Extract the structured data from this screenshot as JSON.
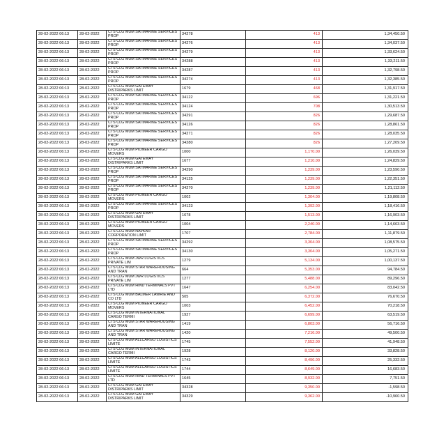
{
  "statement": {
    "amount_color": "#e02020",
    "rows": [
      {
        "txn_date": "28-02-2022 06:13",
        "value_date": "28-02-2022",
        "description": "CTS CLG MUM SAI MARINE SERVICES PROP",
        "ref": "34278",
        "debit": "413",
        "balance": "1,34,450.50"
      },
      {
        "txn_date": "28-02-2022 06:13",
        "value_date": "28-02-2022",
        "description": "CTS CLG MUM SAI MARINE SERVICES PROP",
        "ref": "34276",
        "debit": "413",
        "balance": "1,34,037.50"
      },
      {
        "txn_date": "28-02-2022 06:13",
        "value_date": "28-02-2022",
        "description": "CTS CLG MUM SAI MARINE SERVICES PROP",
        "ref": "34279",
        "debit": "413",
        "balance": "1,33,624.50"
      },
      {
        "txn_date": "28-02-2022 06:13",
        "value_date": "28-02-2022",
        "description": "CTS CLG MUM SAI MARINE SERVICES PROP",
        "ref": "34288",
        "debit": "413",
        "balance": "1,33,211.50"
      },
      {
        "txn_date": "28-02-2022 06:13",
        "value_date": "28-02-2022",
        "description": "CTS CLG MUM SAI MARINE SERVICES PROP",
        "ref": "34287",
        "debit": "413",
        "balance": "1,32,798.50"
      },
      {
        "txn_date": "28-02-2022 06:13",
        "value_date": "28-02-2022",
        "description": "CTS CLG MUM SAI MARINE SERVICES PROP",
        "ref": "34274",
        "debit": "413",
        "balance": "1,32,385.50"
      },
      {
        "txn_date": "28-02-2022 06:13",
        "value_date": "28-02-2022",
        "description": "CTS CLG MUM GATEWAY DISTRIPARKS LIMIT",
        "ref": "1679",
        "debit": "468",
        "balance": "1,31,917.50"
      },
      {
        "txn_date": "28-02-2022 06:13",
        "value_date": "28-02-2022",
        "description": "CTS CLG MUM SAI MARINE SERVICES PROP",
        "ref": "34122",
        "debit": "696",
        "balance": "1,31,221.50"
      },
      {
        "txn_date": "28-02-2022 06:13",
        "value_date": "28-02-2022",
        "description": "CTS CLG MUM SAI MARINE SERVICES PROP",
        "ref": "34124",
        "debit": "708",
        "balance": "1,30,513.50"
      },
      {
        "txn_date": "28-02-2022 06:13",
        "value_date": "28-02-2022",
        "description": "CTS CLG MUM SAI MARINE SERVICES PROP",
        "ref": "34291",
        "debit": "826",
        "balance": "1,29,687.50"
      },
      {
        "txn_date": "28-02-2022 06:13",
        "value_date": "28-02-2022",
        "description": "CTS CLG MUM SAI MARINE SERVICES PROP",
        "ref": "34126",
        "debit": "826",
        "balance": "1,28,861.50"
      },
      {
        "txn_date": "28-02-2022 06:13",
        "value_date": "28-02-2022",
        "description": "CTS CLG MUM SAI MARINE SERVICES PROP",
        "ref": "34271",
        "debit": "826",
        "balance": "1,28,035.50"
      },
      {
        "txn_date": "28-02-2022 06:13",
        "value_date": "28-02-2022",
        "description": "CTS CLG MUM SAI MARINE SERVICES PROP",
        "ref": "34280",
        "debit": "826",
        "balance": "1,27,209.50"
      },
      {
        "txn_date": "28-02-2022 06:13",
        "value_date": "28-02-2022",
        "description": "CTS CLG MUM PIONEER CARGO MOVERS",
        "ref": "1000",
        "debit": "1,170.00",
        "balance": "1,26,039.50"
      },
      {
        "txn_date": "28-02-2022 06:13",
        "value_date": "28-02-2022",
        "description": "CTS CLG MUM GATEWAY DISTRIPARKS LIMIT",
        "ref": "1677",
        "debit": "1,210.00",
        "balance": "1,24,829.50"
      },
      {
        "txn_date": "28-02-2022 06:13",
        "value_date": "28-02-2022",
        "description": "CTS CLG MUM SAI MARINE SERVICES PROP",
        "ref": "34290",
        "debit": "1,239.00",
        "balance": "1,23,590.50"
      },
      {
        "txn_date": "28-02-2022 06:13",
        "value_date": "28-02-2022",
        "description": "CTS CLG MUM SAI MARINE SERVICES PROP",
        "ref": "34125",
        "debit": "1,239.00",
        "balance": "1,22,351.50"
      },
      {
        "txn_date": "28-02-2022 06:13",
        "value_date": "28-02-2022",
        "description": "CTS CLG MUM SAI MARINE SERVICES PROP",
        "ref": "34270",
        "debit": "1,239.00",
        "balance": "1,21,112.50"
      },
      {
        "txn_date": "28-02-2022 06:13",
        "value_date": "28-02-2022",
        "description": "CTS CLG MUM PIONEER CARGO MOVERS",
        "ref": "1002",
        "debit": "1,304.00",
        "balance": "1,19,808.50"
      },
      {
        "txn_date": "28-02-2022 06:13",
        "value_date": "28-02-2022",
        "description": "CTS CLG MUM SAI MARINE SERVICES PROP",
        "ref": "34123",
        "debit": "1,392.00",
        "balance": "1,18,416.50"
      },
      {
        "txn_date": "28-02-2022 06:13",
        "value_date": "28-02-2022",
        "description": "CTS CLG MUM GATEWAY DISTRIPARKS LIMIT",
        "ref": "1678",
        "debit": "1,513.00",
        "balance": "1,16,903.50"
      },
      {
        "txn_date": "28-02-2022 06:13",
        "value_date": "28-02-2022",
        "description": "CTS CLG MUM PIONEER CARGO MOVERS",
        "ref": "1004",
        "debit": "2,240.00",
        "balance": "1,14,663.50"
      },
      {
        "txn_date": "28-02-2022 06:13",
        "value_date": "28-02-2022",
        "description": "CTS CLG MUM NAVKAR CORPORATION LIMIT",
        "ref": "1707",
        "debit": "2,784.00",
        "balance": "1,11,879.50"
      },
      {
        "txn_date": "28-02-2022 06:13",
        "value_date": "28-02-2022",
        "description": "CTS CLG MUM SAI MARINE SERVICES PROP",
        "ref": "34292",
        "debit": "3,304.00",
        "balance": "1,08,575.50"
      },
      {
        "txn_date": "28-02-2022 06:13",
        "value_date": "28-02-2022",
        "description": "CTS CLG MUM SAI MARINE SERVICES PROP",
        "ref": "34130",
        "debit": "3,304.00",
        "balance": "1,05,271.50"
      },
      {
        "txn_date": "28-02-2022 06:13",
        "value_date": "28-02-2022",
        "description": "CTS CLG MUM JWR LOGISTICS PRIVATE LIM",
        "ref": "1279",
        "debit": "5,134.00",
        "balance": "1,00,137.50"
      },
      {
        "txn_date": "28-02-2022 06:13",
        "value_date": "28-02-2022",
        "description": "CTS CLG MUM STAR WAREHOUSING AND TRAN",
        "ref": "664",
        "debit": "5,353.00",
        "balance": "94,784.50"
      },
      {
        "txn_date": "28-02-2022 06:13",
        "value_date": "28-02-2022",
        "description": "CTS CLG MUM JWR LOGISTICS PRIVATE LIM",
        "ref": "1277",
        "debit": "5,488.00",
        "balance": "89,296.50"
      },
      {
        "txn_date": "28-02-2022 06:13",
        "value_date": "28-02-2022",
        "description": "CTS CLG MUM HIND TERMINALS PVT LTD",
        "ref": "1647",
        "debit": "6,254.00",
        "balance": "83,042.50"
      },
      {
        "txn_date": "28-02-2022 06:13",
        "value_date": "28-02-2022",
        "description": "CTS CLG MUM BALMER LAWRIE AND CO LTD",
        "ref": "505",
        "debit": "6,372.00",
        "balance": "76,670.50"
      },
      {
        "txn_date": "28-02-2022 06:13",
        "value_date": "28-02-2022",
        "description": "CTS CLG MUM PIONEER CARGO MOVERS",
        "ref": "1003",
        "debit": "6,452.00",
        "balance": "70,218.50"
      },
      {
        "txn_date": "28-02-2022 06:13",
        "value_date": "28-02-2022",
        "description": "CTS CLG MUM INTERNATIONAL CARGO TERMI",
        "ref": "1927",
        "debit": "6,699.00",
        "balance": "63,519.50"
      },
      {
        "txn_date": "28-02-2022 06:13",
        "value_date": "28-02-2022",
        "description": "CTS CLG MUM STAR WAREHOUSING AND TRAN",
        "ref": "1419",
        "debit": "6,803.00",
        "balance": "56,716.50"
      },
      {
        "txn_date": "28-02-2022 06:13",
        "value_date": "28-02-2022",
        "description": "CTS CLG MUM STAR WAREHOUSING AND TRAN",
        "ref": "1420",
        "debit": "7,216.00",
        "balance": "49,500.50"
      },
      {
        "txn_date": "28-02-2022 06:13",
        "value_date": "28-02-2022",
        "description": "CTS CLG MUM ALLCARGO LOGISTICS LIMITE",
        "ref": "1745",
        "debit": "7,552.00",
        "balance": "41,948.50"
      },
      {
        "txn_date": "28-02-2022 06:13",
        "value_date": "28-02-2022",
        "description": "CTS CLG MUM INTERNATIONAL CARGO TERMI",
        "ref": "1928",
        "debit": "8,120.00",
        "balance": "33,828.50"
      },
      {
        "txn_date": "28-02-2022 06:13",
        "value_date": "28-02-2022",
        "description": "CTS CLG MUM ALLCARGO LOGISTICS LIMITE",
        "ref": "1743",
        "debit": "8,496.00",
        "balance": "25,332.50"
      },
      {
        "txn_date": "28-02-2022 06:13",
        "value_date": "28-02-2022",
        "description": "CTS CLG MUM ALLCARGO LOGISTICS LIMITE",
        "ref": "1744",
        "debit": "8,649.00",
        "balance": "16,683.50"
      },
      {
        "txn_date": "28-02-2022 06:13",
        "value_date": "28-02-2022",
        "description": "CTS CLG MUM HIND TERMINALS PVT LTD",
        "ref": "1645",
        "debit": "8,932.00",
        "balance": "7,751.50"
      },
      {
        "txn_date": "28-02-2022 06:13",
        "value_date": "28-02-2022",
        "description": "CTS CLG MUM GATEWAY DISTRIPARKS LIMIT",
        "ref": "34328",
        "debit": "9,350.00",
        "balance": "-1,598.50"
      },
      {
        "txn_date": "28-02-2022 06:13",
        "value_date": "28-02-2022",
        "description": "CTS CLG MUM GATEWAY DISTRIPARKS LIMIT",
        "ref": "34329",
        "debit": "9,362.00",
        "balance": "-10,960.50"
      }
    ]
  }
}
